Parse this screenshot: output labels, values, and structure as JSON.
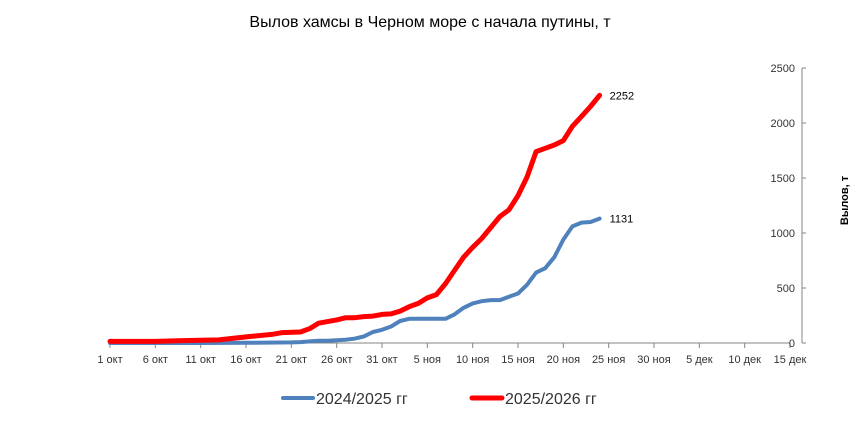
{
  "chart_data": {
    "type": "line",
    "title": "Вылов хамсы в Черном море с начала путины, т",
    "xlabel": "",
    "ylabel": "Вылов, т",
    "ylim": [
      0,
      2500
    ],
    "yticks": [
      "0",
      "500",
      "1000",
      "1500",
      "2000",
      "2500"
    ],
    "y_axis_position": "right",
    "grid": false,
    "legend_position": "bottom",
    "x_range_days": [
      0,
      75
    ],
    "xticks": [
      {
        "day": 0,
        "label": "1 окт"
      },
      {
        "day": 5,
        "label": "6 окт"
      },
      {
        "day": 10,
        "label": "11 окт"
      },
      {
        "day": 15,
        "label": "16 окт"
      },
      {
        "day": 20,
        "label": "21 окт"
      },
      {
        "day": 25,
        "label": "26 окт"
      },
      {
        "day": 30,
        "label": "31 окт"
      },
      {
        "day": 35,
        "label": "5 ноя"
      },
      {
        "day": 40,
        "label": "10 ноя"
      },
      {
        "day": 45,
        "label": "15 ноя"
      },
      {
        "day": 50,
        "label": "20 ноя"
      },
      {
        "day": 55,
        "label": "25 ноя"
      },
      {
        "day": 60,
        "label": "30 ноя"
      },
      {
        "day": 65,
        "label": "5 дек"
      },
      {
        "day": 70,
        "label": "10 дек"
      },
      {
        "day": 75,
        "label": "15 дек"
      }
    ],
    "series": [
      {
        "name": "2024/2025 гг",
        "color": "#4f81bd",
        "end_label": "1131",
        "points": [
          [
            0,
            0
          ],
          [
            5,
            0
          ],
          [
            10,
            0
          ],
          [
            15,
            2
          ],
          [
            20,
            5
          ],
          [
            21,
            8
          ],
          [
            22,
            15
          ],
          [
            23,
            20
          ],
          [
            24,
            20
          ],
          [
            25,
            25
          ],
          [
            26,
            30
          ],
          [
            27,
            40
          ],
          [
            28,
            60
          ],
          [
            29,
            100
          ],
          [
            30,
            120
          ],
          [
            31,
            150
          ],
          [
            32,
            200
          ],
          [
            33,
            220
          ],
          [
            34,
            220
          ],
          [
            35,
            220
          ],
          [
            36,
            220
          ],
          [
            37,
            220
          ],
          [
            38,
            260
          ],
          [
            39,
            320
          ],
          [
            40,
            360
          ],
          [
            41,
            380
          ],
          [
            42,
            390
          ],
          [
            43,
            390
          ],
          [
            44,
            420
          ],
          [
            45,
            450
          ],
          [
            46,
            530
          ],
          [
            47,
            640
          ],
          [
            48,
            680
          ],
          [
            49,
            780
          ],
          [
            50,
            940
          ],
          [
            51,
            1060
          ],
          [
            52,
            1095
          ],
          [
            53,
            1100
          ],
          [
            54,
            1131
          ]
        ]
      },
      {
        "name": "2025/2026 гг",
        "color": "#ff0000",
        "end_label": "2252",
        "points": [
          [
            0,
            15
          ],
          [
            5,
            15
          ],
          [
            8,
            22
          ],
          [
            12,
            28
          ],
          [
            15,
            55
          ],
          [
            18,
            80
          ],
          [
            19,
            95
          ],
          [
            21,
            100
          ],
          [
            22,
            130
          ],
          [
            23,
            180
          ],
          [
            24,
            195
          ],
          [
            25,
            210
          ],
          [
            26,
            230
          ],
          [
            27,
            230
          ],
          [
            28,
            240
          ],
          [
            29,
            245
          ],
          [
            30,
            260
          ],
          [
            31,
            265
          ],
          [
            32,
            290
          ],
          [
            33,
            330
          ],
          [
            34,
            360
          ],
          [
            35,
            410
          ],
          [
            36,
            440
          ],
          [
            37,
            540
          ],
          [
            38,
            660
          ],
          [
            39,
            780
          ],
          [
            40,
            870
          ],
          [
            41,
            950
          ],
          [
            42,
            1050
          ],
          [
            43,
            1150
          ],
          [
            44,
            1210
          ],
          [
            45,
            1340
          ],
          [
            46,
            1510
          ],
          [
            47,
            1740
          ],
          [
            48,
            1770
          ],
          [
            49,
            1800
          ],
          [
            50,
            1840
          ],
          [
            51,
            1970
          ],
          [
            52,
            2060
          ],
          [
            53,
            2150
          ],
          [
            54,
            2252
          ]
        ]
      }
    ]
  }
}
